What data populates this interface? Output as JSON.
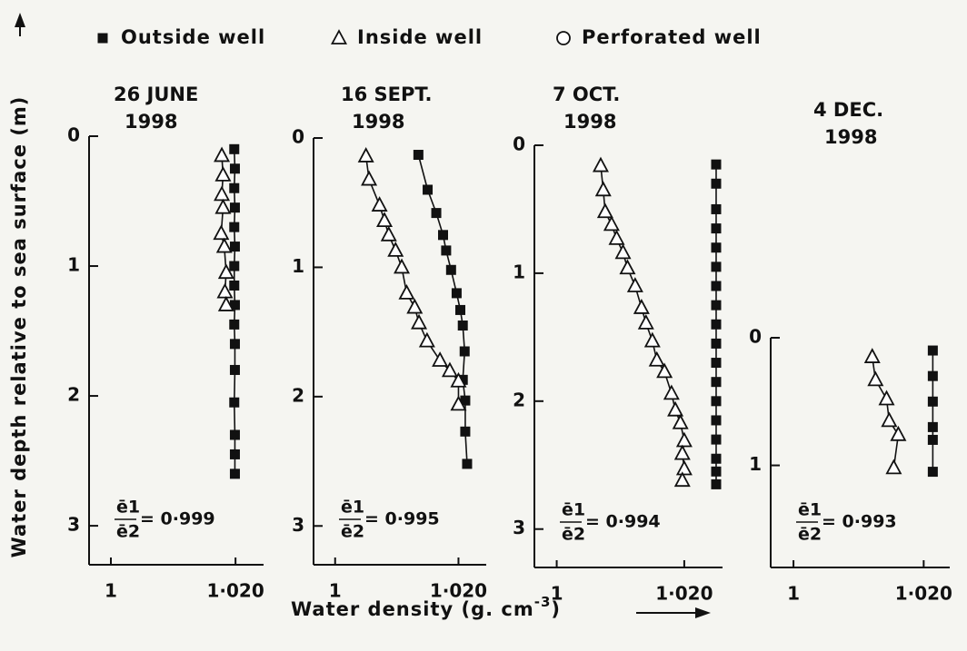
{
  "y_label": "Water depth relative to sea surface (m)",
  "x_label": {
    "text": "Water density (g. cm",
    "sup": "-3",
    "end": ")"
  },
  "legend": [
    {
      "name": "Outside well",
      "marker": "square"
    },
    {
      "name": "Inside well",
      "marker": "triangle"
    },
    {
      "name": "Perforated well",
      "marker": "circle"
    }
  ],
  "chart_data": [
    {
      "type": "scatter",
      "title": [
        "26 JUNE",
        "1998"
      ],
      "annotation": {
        "numerator": "ē1",
        "denominator": "ē2",
        "value": "= 0·999"
      },
      "xlim": [
        0.9965,
        1.0245
      ],
      "xticks": [
        1,
        {
          "value": 1.02,
          "label": "1·020"
        }
      ],
      "ylim": [
        0,
        3.3
      ],
      "yticks": [
        0,
        1,
        2,
        3
      ],
      "y_inverted": true,
      "series": [
        {
          "marker": "square",
          "color": "#111111",
          "x": [
            1.0198,
            1.0199,
            1.0198,
            1.0199,
            1.0198,
            1.0199,
            1.0198,
            1.0198,
            1.0199,
            1.0198,
            1.0199,
            1.0199,
            1.0198,
            1.0199,
            1.0199,
            1.0199
          ],
          "values": [
            0.1,
            0.25,
            0.4,
            0.55,
            0.7,
            0.85,
            1.0,
            1.15,
            1.3,
            1.45,
            1.6,
            1.8,
            2.05,
            2.3,
            2.45,
            2.6
          ]
        },
        {
          "marker": "triangle",
          "color": "#111111",
          "x": [
            1.0178,
            1.018,
            1.0178,
            1.018,
            1.0177,
            1.0182,
            1.0185,
            1.0183,
            1.0185
          ],
          "values": [
            0.15,
            0.3,
            0.45,
            0.55,
            0.75,
            0.85,
            1.05,
            1.2,
            1.3
          ]
        }
      ]
    },
    {
      "type": "scatter",
      "title": [
        "16 SEPT.",
        "1998"
      ],
      "annotation": {
        "numerator": "ē1",
        "denominator": "ē2",
        "value": "= 0·995"
      },
      "xlim": [
        0.9965,
        1.0245
      ],
      "xticks": [
        1,
        {
          "value": 1.02,
          "label": "1·020"
        }
      ],
      "ylim": [
        0,
        3.3
      ],
      "yticks": [
        0,
        1,
        2,
        3
      ],
      "y_inverted": true,
      "series": [
        {
          "marker": "square",
          "color": "#111111",
          "x": [
            1.0135,
            1.015,
            1.0164,
            1.0175,
            1.018,
            1.0188,
            1.0197,
            1.0203,
            1.0207,
            1.021,
            1.0207,
            1.0211,
            1.0211,
            1.0214
          ],
          "values": [
            0.13,
            0.4,
            0.58,
            0.75,
            0.87,
            1.02,
            1.2,
            1.33,
            1.45,
            1.65,
            1.87,
            2.03,
            2.27,
            2.52
          ]
        },
        {
          "marker": "triangle",
          "color": "#111111",
          "x": [
            1.005,
            1.0055,
            1.0072,
            1.008,
            1.0087,
            1.0098,
            1.0108,
            1.0116,
            1.0129,
            1.0136,
            1.0149,
            1.017,
            1.0186,
            1.02,
            1.02
          ],
          "values": [
            0.14,
            0.32,
            0.52,
            0.64,
            0.75,
            0.87,
            1.0,
            1.2,
            1.31,
            1.43,
            1.57,
            1.72,
            1.8,
            1.88,
            2.06
          ]
        }
      ]
    },
    {
      "type": "scatter",
      "title": [
        "7 OCT.",
        "1998"
      ],
      "annotation": {
        "numerator": "ē1",
        "denominator": "ē2",
        "value": "= 0·994"
      },
      "xlim": [
        0.9965,
        1.026
      ],
      "xticks": [
        1,
        {
          "value": 1.02,
          "label": "1·020"
        }
      ],
      "ylim": [
        0,
        3.3
      ],
      "yticks": [
        0,
        1,
        2,
        3
      ],
      "y_inverted": true,
      "series": [
        {
          "marker": "square",
          "color": "#111111",
          "x": [
            1.025,
            1.025,
            1.025,
            1.025,
            1.025,
            1.025,
            1.025,
            1.025,
            1.025,
            1.025,
            1.025,
            1.025,
            1.025,
            1.025,
            1.025,
            1.025,
            1.025,
            1.025
          ],
          "values": [
            0.15,
            0.3,
            0.5,
            0.65,
            0.8,
            0.95,
            1.1,
            1.25,
            1.4,
            1.55,
            1.7,
            1.85,
            2.0,
            2.15,
            2.3,
            2.45,
            2.55,
            2.65
          ]
        },
        {
          "marker": "triangle",
          "color": "#111111",
          "x": [
            1.0069,
            1.0073,
            1.0076,
            1.0086,
            1.0094,
            1.0104,
            1.0111,
            1.0123,
            1.0133,
            1.014,
            1.015,
            1.0157,
            1.0169,
            1.018,
            1.0186,
            1.0194,
            1.02,
            1.0197,
            1.02,
            1.0197
          ],
          "values": [
            0.16,
            0.35,
            0.52,
            0.62,
            0.73,
            0.84,
            0.96,
            1.1,
            1.27,
            1.39,
            1.53,
            1.68,
            1.77,
            1.94,
            2.07,
            2.17,
            2.31,
            2.41,
            2.53,
            2.62
          ]
        }
      ]
    },
    {
      "type": "scatter",
      "title": [
        "4 DEC.",
        "1998"
      ],
      "annotation": {
        "numerator": "ē1",
        "denominator": "ē2",
        "value": "= 0·993"
      },
      "xlim": [
        0.9965,
        1.024
      ],
      "xticks": [
        1,
        {
          "value": 1.02,
          "label": "1·020"
        }
      ],
      "ylim": [
        0,
        1.8
      ],
      "yticks": [
        0,
        1
      ],
      "y_inverted": true,
      "series": [
        {
          "marker": "square",
          "color": "#111111",
          "x": [
            1.0214,
            1.0214,
            1.0214,
            1.0214,
            1.0214,
            1.0214
          ],
          "values": [
            0.1,
            0.3,
            0.5,
            0.7,
            0.8,
            1.05
          ]
        },
        {
          "marker": "triangle",
          "color": "#111111",
          "x": [
            1.0121,
            1.0126,
            1.0143,
            1.0147,
            1.0161,
            1.0154
          ],
          "values": [
            0.15,
            0.33,
            0.48,
            0.65,
            0.76,
            1.02
          ]
        }
      ]
    }
  ]
}
